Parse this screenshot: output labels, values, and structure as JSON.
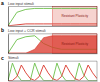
{
  "chart_data": [
    {
      "type": "line",
      "title": "a",
      "subtitle": "Low input stimuli",
      "x": [
        0,
        1,
        2,
        3,
        4,
        5,
        6,
        7,
        8,
        9,
        10
      ],
      "series": [
        {
          "color": "#6cc04a",
          "values": [
            0,
            0.7,
            0.85,
            0.9,
            0.9,
            0.9,
            0.9,
            0.9,
            0.9,
            0.9,
            0.9
          ]
        },
        {
          "color": "#d9352a",
          "values": [
            0,
            0.05,
            0.1,
            0.1,
            0.1,
            0.1,
            0.1,
            0.1,
            0.1,
            0.1,
            0.1
          ]
        }
      ],
      "annotation": "Resistant Plasticity",
      "xlim": [
        0,
        10
      ],
      "ylim": [
        0,
        1
      ],
      "tick_labels": false
    },
    {
      "type": "line",
      "title": "b",
      "subtitle": "Low input + CCR stimuli",
      "x": [
        0,
        1,
        2,
        3,
        4,
        5,
        6,
        7,
        8,
        9,
        10
      ],
      "series": [
        {
          "color": "#6cc04a",
          "values": [
            0,
            0.7,
            0.85,
            0.9,
            0.5,
            0.3,
            0.2,
            0.2,
            0.2,
            0.2,
            0.2
          ]
        },
        {
          "color": "#d9352a",
          "type": "area",
          "values": [
            0,
            0,
            0,
            0.2,
            0.8,
            0.9,
            0.9,
            0.9,
            0.9,
            0.9,
            0.9
          ]
        }
      ],
      "annotation": "Resistant Plasticity",
      "xlim": [
        0,
        10
      ],
      "ylim": [
        0,
        1
      ],
      "tick_labels": false
    },
    {
      "type": "line",
      "title": "c",
      "subtitle": "Stimuli",
      "x": [
        0,
        1,
        2,
        3,
        4,
        5,
        6,
        7,
        8,
        9,
        10,
        11,
        12,
        13,
        14,
        15,
        16,
        17,
        18,
        19,
        20
      ],
      "series": [
        {
          "color": "#6cc04a",
          "values": [
            0,
            0.9,
            0.3,
            0,
            0,
            0,
            0.9,
            0.3,
            0,
            0,
            0,
            0.9,
            0.3,
            0,
            0,
            0,
            0.9,
            0.3,
            0,
            0,
            0
          ]
        },
        {
          "color": "#d9352a",
          "values": [
            0,
            0,
            0.2,
            0.8,
            0.4,
            0.1,
            0,
            0.2,
            0.8,
            0.4,
            0.1,
            0,
            0.2,
            0.8,
            0.4,
            0.1,
            0,
            0.2,
            0.8,
            0.4,
            0.1
          ]
        }
      ],
      "xlim": [
        0,
        20
      ],
      "ylim": [
        0,
        1
      ],
      "tick_labels": false
    }
  ]
}
